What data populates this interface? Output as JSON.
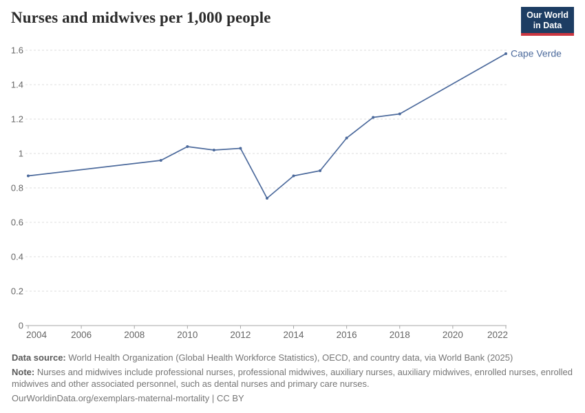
{
  "header": {
    "title": "Nurses and midwives per 1,000 people",
    "logo": {
      "line1": "Our World",
      "line2": "in Data",
      "background_color": "#1d3d63",
      "bar_color": "#cb3640"
    }
  },
  "chart_data": {
    "type": "line",
    "title": "Nurses and midwives per 1,000 people",
    "series": [
      {
        "name": "Cape Verde",
        "x": [
          2004,
          2009,
          2010,
          2011,
          2012,
          2013,
          2014,
          2015,
          2016,
          2017,
          2018,
          2022
        ],
        "values": [
          0.87,
          0.96,
          1.04,
          1.02,
          1.03,
          0.74,
          0.87,
          0.9,
          1.09,
          1.21,
          1.23,
          1.58
        ],
        "color": "#4C6A9C"
      }
    ],
    "xlabel": "",
    "ylabel": "",
    "xlim": [
      2004,
      2022
    ],
    "ylim": [
      0,
      1.6
    ],
    "x_ticks": [
      2004,
      2006,
      2008,
      2010,
      2012,
      2014,
      2016,
      2018,
      2020,
      2022
    ],
    "y_ticks": [
      0,
      0.2,
      0.4,
      0.6,
      0.8,
      1,
      1.2,
      1.4,
      1.6
    ],
    "grid": "horizontal-dashed",
    "legend_position": "end-of-line-label",
    "axis_label_color": "#666666",
    "gridline_color": "#dedede",
    "axis_line_color": "#a5a5a5"
  },
  "footer": {
    "data_source_label": "Data source:",
    "data_source": "World Health Organization (Global Health Workforce Statistics), OECD, and country data, via World Bank (2025)",
    "note_label": "Note:",
    "note": "Nurses and midwives include professional nurses, professional midwives, auxiliary nurses, auxiliary midwives, enrolled nurses, enrolled midwives and other associated personnel, such as dental nurses and primary care nurses.",
    "url": "OurWorldinData.org/exemplars-maternal-mortality",
    "separator": "|",
    "license": "CC BY"
  }
}
